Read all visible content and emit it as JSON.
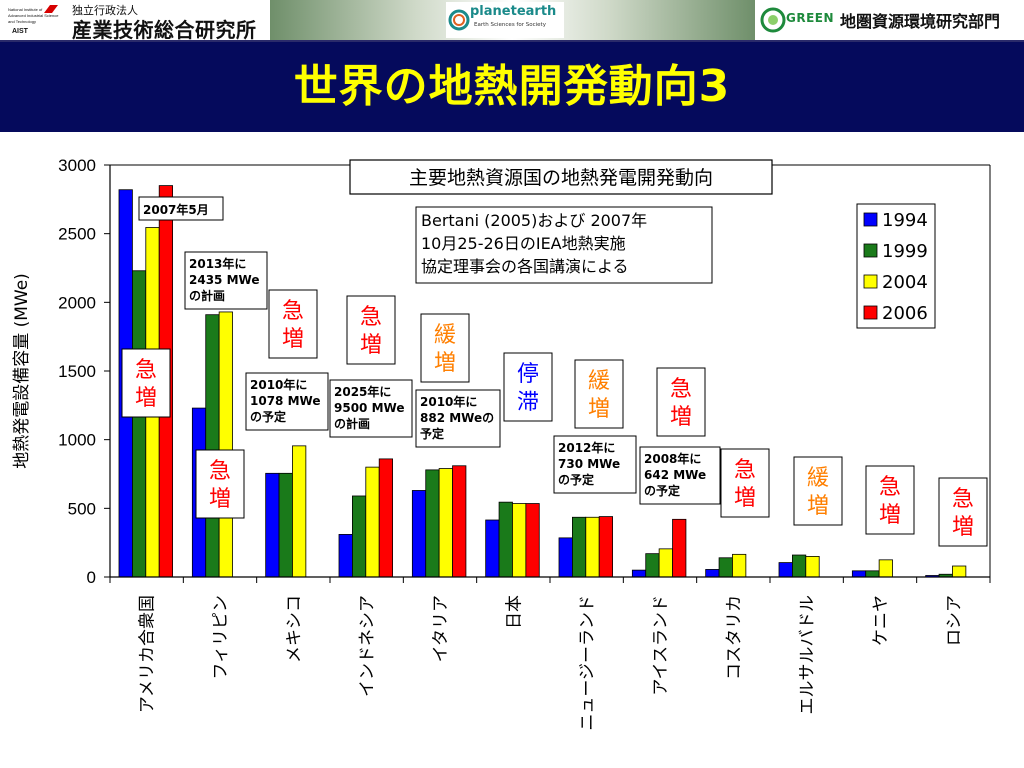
{
  "header": {
    "org_small": "独立行政法人",
    "org_name": "産業技術総合研究所",
    "aist_logo_text": [
      "National Institute of",
      "Advanced Industrial Science",
      "and Technology",
      "AIST"
    ],
    "planet_name": "planetearth",
    "planet_sub": "Earth Sciences for Society",
    "green_word": "GREEN",
    "dept_name": "地圏資源環境研究部門"
  },
  "title": "世界の地熱開発動向3",
  "colors": {
    "title_band": "#050a5c",
    "title_text": "#ffff00",
    "s1994": "#0000ff",
    "s1999": "#1a7a1a",
    "s2004": "#ffff00",
    "s2006": "#ff0000",
    "rapid": "#ff0000",
    "slow": "#ff7f00",
    "stagnant": "#0000ff"
  },
  "chart_data": {
    "type": "bar",
    "title": "主要地熱資源国の地熱発電開発動向",
    "ylabel": "地熱発電設備容量 (MWe)",
    "xlabel": "",
    "ylim": [
      0,
      3000
    ],
    "yticks": [
      0,
      500,
      1000,
      1500,
      2000,
      2500,
      3000
    ],
    "categories": [
      "アメリカ合衆国",
      "フィリピン",
      "メキシコ",
      "インドネシア",
      "イタリア",
      "日本",
      "ニュージーランド",
      "アイスランド",
      "コスタリカ",
      "エルサルバドル",
      "ケニヤ",
      "ロシア"
    ],
    "series": [
      {
        "name": "1994",
        "values": [
          2820,
          1230,
          755,
          310,
          630,
          415,
          285,
          50,
          55,
          105,
          45,
          11
        ]
      },
      {
        "name": "1999",
        "values": [
          2230,
          1910,
          755,
          590,
          780,
          545,
          435,
          170,
          140,
          160,
          45,
          20
        ]
      },
      {
        "name": "2004",
        "values": [
          2545,
          1930,
          955,
          800,
          790,
          535,
          435,
          205,
          165,
          150,
          125,
          80
        ]
      },
      {
        "name": "2006",
        "values": [
          2850,
          null,
          null,
          860,
          810,
          535,
          440,
          420,
          null,
          null,
          null,
          null
        ]
      }
    ],
    "legend_position": "right",
    "grid": false,
    "source_note": [
      "Bertani (2005)および 2007年",
      "10月25-26日のIEA地熱実施",
      "協定理事会の各国講演による"
    ],
    "annotations": {
      "date_note": "2007年5月",
      "notes": [
        [
          "2013年に",
          "2435 MWe",
          "の計画"
        ],
        [
          "2010年に",
          "1078 MWe",
          "の予定"
        ],
        [
          "2025年に",
          "9500 MWe",
          "の計画"
        ],
        [
          "2010年に",
          "882 MWeの",
          "予定"
        ],
        [
          "2012年に",
          "730 MWe",
          "の予定"
        ],
        [
          "2008年に",
          "642 MWe",
          "の予定"
        ]
      ],
      "trends": [
        {
          "text": [
            "急",
            "増"
          ],
          "kind": "rapid"
        },
        {
          "text": [
            "急",
            "増"
          ],
          "kind": "rapid"
        },
        {
          "text": [
            "急",
            "増"
          ],
          "kind": "rapid"
        },
        {
          "text": [
            "急",
            "増"
          ],
          "kind": "rapid"
        },
        {
          "text": [
            "緩",
            "増"
          ],
          "kind": "slow"
        },
        {
          "text": [
            "停",
            "滞"
          ],
          "kind": "stagnant"
        },
        {
          "text": [
            "緩",
            "増"
          ],
          "kind": "slow"
        },
        {
          "text": [
            "急",
            "増"
          ],
          "kind": "rapid"
        },
        {
          "text": [
            "急",
            "増"
          ],
          "kind": "rapid"
        },
        {
          "text": [
            "緩",
            "増"
          ],
          "kind": "slow"
        },
        {
          "text": [
            "急",
            "増"
          ],
          "kind": "rapid"
        },
        {
          "text": [
            "急",
            "増"
          ],
          "kind": "rapid"
        }
      ]
    }
  }
}
